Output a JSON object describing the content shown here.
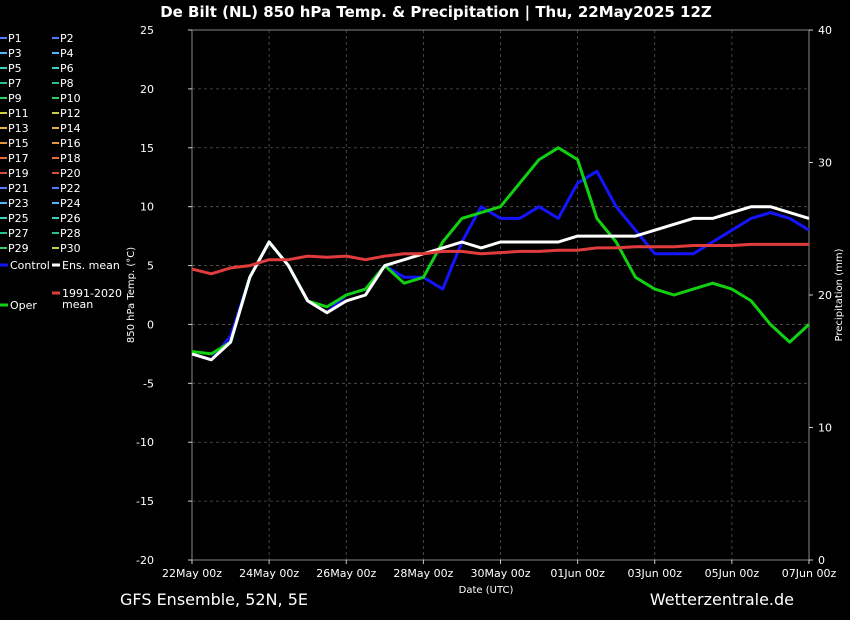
{
  "chart_data": {
    "type": "line",
    "title": "De Bilt  (NL)  850 hPa Temp. & Precipitation | Thu, 22May2025 12Z",
    "ylabel": "850 hPa Temp. (°C)",
    "y2label": "Precipitation (mm)",
    "xlabel": "Date (UTC)",
    "ylim": [
      -20,
      25
    ],
    "y2lim": [
      0,
      40
    ],
    "xlim": [
      0,
      16
    ],
    "y_ticks": [
      "25",
      "20",
      "15",
      "10",
      "5",
      "0",
      "-5",
      "-10",
      "-15",
      "-20"
    ],
    "y2_ticks": [
      "40",
      "30",
      "20",
      "10",
      "0"
    ],
    "x_ticks": [
      "22May 00z",
      "24May 00z",
      "26May 00z",
      "28May 00z",
      "30May 00z",
      "01Jun 00z",
      "03Jun 00z",
      "05Jun 00z",
      "07Jun 00z"
    ],
    "grid": true,
    "footer_left": "GFS Ensemble, 52N, 5E",
    "footer_right": "Wetterzentrale.de",
    "legend": [
      {
        "label": "P1",
        "color": "#4a7fff"
      },
      {
        "label": "P2",
        "color": "#4a7fff"
      },
      {
        "label": "P3",
        "color": "#4fb6ff"
      },
      {
        "label": "P4",
        "color": "#4fb6ff"
      },
      {
        "label": "P5",
        "color": "#39d0c8"
      },
      {
        "label": "P6",
        "color": "#39d0c8"
      },
      {
        "label": "P7",
        "color": "#22c48c"
      },
      {
        "label": "P8",
        "color": "#22c48c"
      },
      {
        "label": "P9",
        "color": "#2dd05a"
      },
      {
        "label": "P10",
        "color": "#2dd05a"
      },
      {
        "label": "P11",
        "color": "#c8d03c"
      },
      {
        "label": "P12",
        "color": "#c8d03c"
      },
      {
        "label": "P13",
        "color": "#e6b43c"
      },
      {
        "label": "P14",
        "color": "#e6b43c"
      },
      {
        "label": "P15",
        "color": "#e8943c"
      },
      {
        "label": "P16",
        "color": "#e8943c"
      },
      {
        "label": "P17",
        "color": "#e86a3c"
      },
      {
        "label": "P18",
        "color": "#e86a3c"
      },
      {
        "label": "P19",
        "color": "#d2503c"
      },
      {
        "label": "P20",
        "color": "#d2503c"
      },
      {
        "label": "P21",
        "color": "#4a7fff"
      },
      {
        "label": "P22",
        "color": "#4a7fff"
      },
      {
        "label": "P23",
        "color": "#4fb6ff"
      },
      {
        "label": "P24",
        "color": "#4fb6ff"
      },
      {
        "label": "P25",
        "color": "#39d0c8"
      },
      {
        "label": "P26",
        "color": "#39d0c8"
      },
      {
        "label": "P27",
        "color": "#22c48c"
      },
      {
        "label": "P28",
        "color": "#22c48c"
      },
      {
        "label": "P29",
        "color": "#2dd05a"
      },
      {
        "label": "P30",
        "color": "#c8d03c"
      },
      {
        "label": "Control",
        "color": "#1414ff"
      },
      {
        "label": "Ens. mean",
        "color": "#ffffff"
      },
      {
        "label": "Oper",
        "color": "#12d012"
      },
      {
        "label": "1991-2020 mean",
        "color": "#e03c3c"
      }
    ],
    "series": [
      {
        "name": "Control",
        "color": "#1414ff",
        "values": [
          [
            0,
            -2.5
          ],
          [
            0.5,
            -3
          ],
          [
            1,
            -1
          ],
          [
            1.5,
            4
          ],
          [
            2,
            7
          ],
          [
            2.5,
            5
          ],
          [
            3,
            2
          ],
          [
            3.5,
            1
          ],
          [
            4,
            2.5
          ],
          [
            4.5,
            3
          ],
          [
            5,
            5
          ],
          [
            5.5,
            4
          ],
          [
            6,
            4
          ],
          [
            6.5,
            3
          ],
          [
            7,
            7
          ],
          [
            7.5,
            10
          ],
          [
            8,
            9
          ],
          [
            8.5,
            9
          ],
          [
            9,
            10
          ],
          [
            9.5,
            9
          ],
          [
            10,
            12
          ],
          [
            10.5,
            13
          ],
          [
            11,
            10
          ],
          [
            11.5,
            8
          ],
          [
            12,
            6
          ],
          [
            12.5,
            6
          ],
          [
            13,
            6
          ],
          [
            13.5,
            7
          ],
          [
            14,
            8
          ],
          [
            14.5,
            9
          ],
          [
            15,
            9.5
          ],
          [
            15.5,
            9
          ],
          [
            16,
            8
          ]
        ]
      },
      {
        "name": "Oper",
        "color": "#12d012",
        "values": [
          [
            0,
            -2.3
          ],
          [
            0.5,
            -2.5
          ],
          [
            1,
            -1.5
          ],
          [
            1.5,
            4
          ],
          [
            2,
            7
          ],
          [
            2.5,
            5
          ],
          [
            3,
            2
          ],
          [
            3.5,
            1.5
          ],
          [
            4,
            2.5
          ],
          [
            4.5,
            3
          ],
          [
            5,
            5
          ],
          [
            5.5,
            3.5
          ],
          [
            6,
            4
          ],
          [
            6.5,
            7
          ],
          [
            7,
            9
          ],
          [
            7.5,
            9.5
          ],
          [
            8,
            10
          ],
          [
            8.5,
            12
          ],
          [
            9,
            14
          ],
          [
            9.5,
            15
          ],
          [
            10,
            14
          ],
          [
            10.5,
            9
          ],
          [
            11,
            7
          ],
          [
            11.5,
            4
          ],
          [
            12,
            3
          ],
          [
            12.5,
            2.5
          ],
          [
            13,
            3
          ],
          [
            13.5,
            3.5
          ],
          [
            14,
            3
          ],
          [
            14.5,
            2
          ],
          [
            15,
            0
          ],
          [
            15.5,
            -1.5
          ],
          [
            16,
            0
          ]
        ]
      },
      {
        "name": "Ens. mean",
        "color": "#ffffff",
        "values": [
          [
            0,
            -2.5
          ],
          [
            0.5,
            -3
          ],
          [
            1,
            -1.5
          ],
          [
            1.5,
            4
          ],
          [
            2,
            7
          ],
          [
            2.5,
            5
          ],
          [
            3,
            2
          ],
          [
            3.5,
            1
          ],
          [
            4,
            2
          ],
          [
            4.5,
            2.5
          ],
          [
            5,
            5
          ],
          [
            5.5,
            5.5
          ],
          [
            6,
            6
          ],
          [
            6.5,
            6.5
          ],
          [
            7,
            7
          ],
          [
            7.5,
            6.5
          ],
          [
            8,
            7
          ],
          [
            8.5,
            7
          ],
          [
            9,
            7
          ],
          [
            9.5,
            7
          ],
          [
            10,
            7.5
          ],
          [
            10.5,
            7.5
          ],
          [
            11,
            7.5
          ],
          [
            11.5,
            7.5
          ],
          [
            12,
            8
          ],
          [
            12.5,
            8.5
          ],
          [
            13,
            9
          ],
          [
            13.5,
            9
          ],
          [
            14,
            9.5
          ],
          [
            14.5,
            10
          ],
          [
            15,
            10
          ],
          [
            15.5,
            9.5
          ],
          [
            16,
            9
          ]
        ]
      },
      {
        "name": "1991-2020 mean",
        "color": "#e03c3c",
        "values": [
          [
            0,
            4.7
          ],
          [
            0.5,
            4.3
          ],
          [
            1,
            4.8
          ],
          [
            1.5,
            5
          ],
          [
            2,
            5.5
          ],
          [
            2.5,
            5.5
          ],
          [
            3,
            5.8
          ],
          [
            3.5,
            5.7
          ],
          [
            4,
            5.8
          ],
          [
            4.5,
            5.5
          ],
          [
            5,
            5.8
          ],
          [
            5.5,
            6
          ],
          [
            6,
            6
          ],
          [
            6.5,
            6.2
          ],
          [
            7,
            6.2
          ],
          [
            7.5,
            6
          ],
          [
            8,
            6.1
          ],
          [
            8.5,
            6.2
          ],
          [
            9,
            6.2
          ],
          [
            9.5,
            6.3
          ],
          [
            10,
            6.3
          ],
          [
            10.5,
            6.5
          ],
          [
            11,
            6.5
          ],
          [
            11.5,
            6.6
          ],
          [
            12,
            6.6
          ],
          [
            12.5,
            6.6
          ],
          [
            13,
            6.7
          ],
          [
            13.5,
            6.7
          ],
          [
            14,
            6.7
          ],
          [
            14.5,
            6.8
          ],
          [
            15,
            6.8
          ],
          [
            15.5,
            6.8
          ],
          [
            16,
            6.8
          ]
        ]
      }
    ]
  }
}
